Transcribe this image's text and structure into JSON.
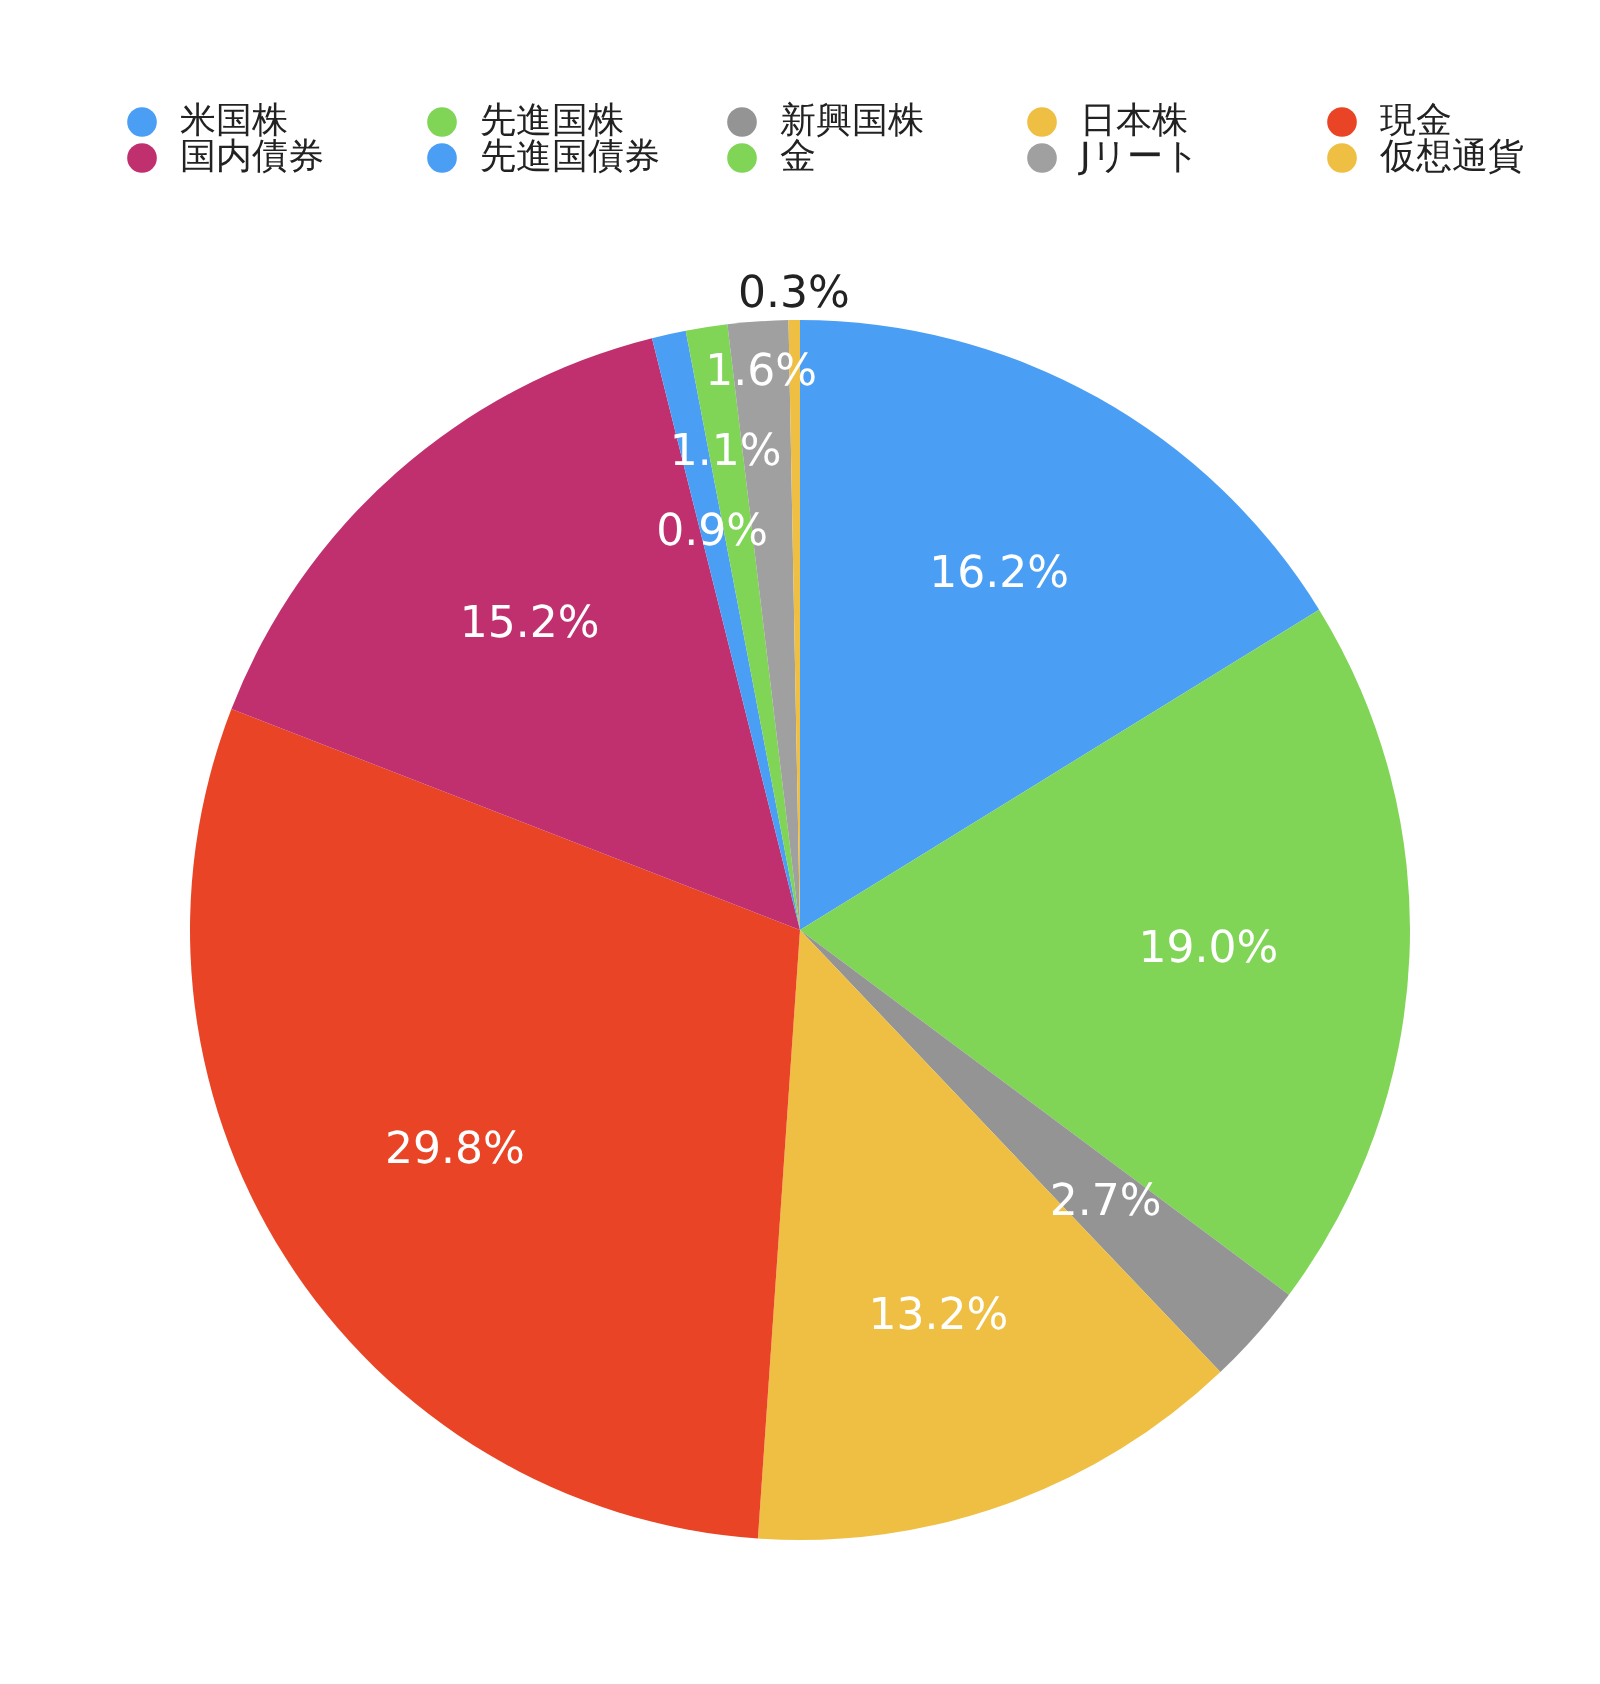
{
  "chart_data": {
    "type": "pie",
    "legend": "top",
    "categories": [
      "米国株",
      "先進国株",
      "新興国株",
      "日本株",
      "現金",
      "国内債券",
      "先進国債券",
      "金",
      "Jリート",
      "仮想通貨"
    ],
    "values": [
      16.2,
      19.0,
      2.7,
      13.2,
      29.8,
      15.2,
      0.9,
      1.1,
      1.6,
      0.3
    ],
    "colors": [
      "#4a9ff5",
      "#80d456",
      "#949494",
      "#efbf43",
      "#e94425",
      "#c0306f",
      "#4a9ff5",
      "#80d456",
      "#a0a0a0",
      "#efbf43"
    ],
    "value_labels": [
      "16.2%",
      "19.0%",
      "2.7%",
      "13.2%",
      "29.8%",
      "15.2%",
      "0.9%",
      "1.1%",
      "1.6%",
      "0.3%"
    ]
  }
}
